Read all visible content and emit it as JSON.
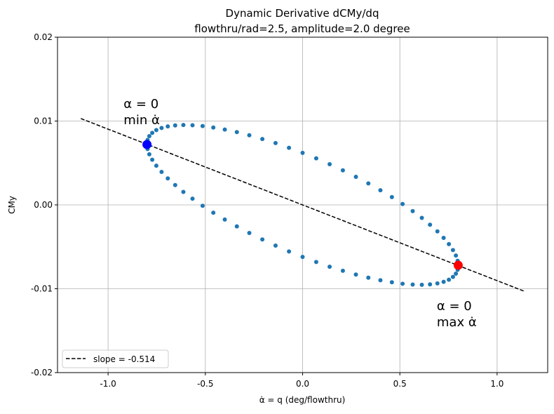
{
  "chart_data": {
    "type": "scatter",
    "title": "Dynamic Derivative dCMy/dq",
    "subtitle": "flowthru/rad=2.5, amplitude=2.0 degree",
    "xlabel": "α̇ = q (deg/flowthru)",
    "ylabel": "CMy",
    "xlim": [
      -1.26,
      1.26
    ],
    "ylim": [
      -0.02,
      0.02
    ],
    "grid": true,
    "x_ticks": [
      "-1.0",
      "-0.5",
      "0.0",
      "0.5",
      "1.0"
    ],
    "x_tick_values": [
      -1.0,
      -0.5,
      0.0,
      0.5,
      1.0
    ],
    "y_ticks": [
      "0.02",
      "0.01",
      "0.00",
      "-0.01",
      "-0.02"
    ],
    "y_tick_values": [
      0.02,
      0.01,
      0.0,
      -0.01,
      -0.02
    ],
    "legend": {
      "position": "lower-left",
      "entries": [
        "slope = -0.514"
      ]
    },
    "series": [
      {
        "kind": "scatter",
        "color": "#1f77b4",
        "x": [
          0.8,
          0.797,
          0.788,
          0.773,
          0.752,
          0.725,
          0.693,
          0.655,
          0.613,
          0.566,
          0.514,
          0.459,
          0.4,
          0.338,
          0.274,
          0.207,
          0.139,
          0.07,
          0,
          -0.07,
          -0.139,
          -0.207,
          -0.274,
          -0.338,
          -0.4,
          -0.459,
          -0.514,
          -0.566,
          -0.613,
          -0.655,
          -0.693,
          -0.725,
          -0.752,
          -0.773,
          -0.788,
          -0.797,
          -0.8,
          -0.797,
          -0.788,
          -0.773,
          -0.752,
          -0.725,
          -0.693,
          -0.655,
          -0.613,
          -0.566,
          -0.514,
          -0.459,
          -0.4,
          -0.338,
          -0.274,
          -0.207,
          -0.139,
          -0.07,
          0,
          0.07,
          0.139,
          0.207,
          0.274,
          0.338,
          0.4,
          0.459,
          0.514,
          0.566,
          0.613,
          0.655,
          0.693,
          0.725,
          0.752,
          0.773,
          0.788,
          0.797
        ],
        "y": [
          -0.00723,
          -0.00666,
          -0.00604,
          -0.00539,
          -0.00468,
          -0.00393,
          -0.00316,
          -0.00236,
          -0.00155,
          -0.00074,
          0.0001,
          0.00093,
          0.00175,
          0.00256,
          0.00335,
          0.00412,
          0.00485,
          0.00555,
          0.0062,
          0.00681,
          0.00737,
          0.00786,
          0.00831,
          0.00868,
          0.00899,
          0.00923,
          0.0094,
          0.0095,
          0.00953,
          0.00948,
          0.00936,
          0.00917,
          0.00892,
          0.00859,
          0.0082,
          0.00774,
          0.00723,
          0.00666,
          0.00604,
          0.00539,
          0.00468,
          0.00393,
          0.00316,
          0.00236,
          0.00155,
          0.00074,
          -0.0001,
          -0.00093,
          -0.00175,
          -0.00256,
          -0.00335,
          -0.00412,
          -0.00485,
          -0.00555,
          -0.0062,
          -0.00681,
          -0.00737,
          -0.00786,
          -0.00831,
          -0.00868,
          -0.00899,
          -0.00923,
          -0.0094,
          -0.0095,
          -0.00953,
          -0.00948,
          -0.00936,
          -0.00917,
          -0.00892,
          -0.00859,
          -0.0082,
          -0.00774
        ]
      },
      {
        "kind": "line",
        "name": "slope = -0.514",
        "style": "dashed",
        "color": "#000000",
        "x": [
          -1.14,
          1.14
        ],
        "y": [
          0.0103,
          -0.0103
        ]
      }
    ],
    "markers": [
      {
        "x": -0.8,
        "y": 0.0072,
        "color": "#0000ff"
      },
      {
        "x": 0.8,
        "y": -0.0072,
        "color": "#ff0000"
      }
    ],
    "annotations": [
      {
        "line1": "α = 0",
        "line2": "min α̇",
        "x": -0.92,
        "y": 0.0103,
        "color": "#0000ff"
      },
      {
        "line1": "α = 0",
        "line2": "max α̇",
        "x": 0.69,
        "y": -0.0138,
        "color": "#ff0000"
      }
    ]
  }
}
